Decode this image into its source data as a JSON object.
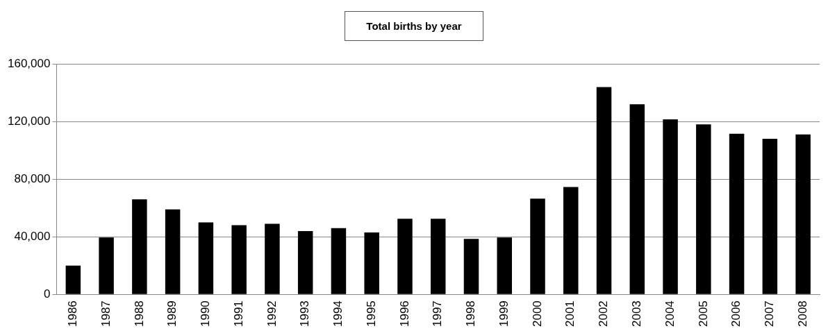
{
  "chart_data": {
    "type": "bar",
    "title": "Total births by year",
    "categories": [
      "1986",
      "1987",
      "1988",
      "1989",
      "1990",
      "1991",
      "1992",
      "1993",
      "1994",
      "1995",
      "1996",
      "1997",
      "1998",
      "1999",
      "2000",
      "2001",
      "2002",
      "2003",
      "2004",
      "2005",
      "2006",
      "2007",
      "2008"
    ],
    "values": [
      20000,
      39500,
      66000,
      59000,
      50000,
      48000,
      49000,
      44000,
      46000,
      43000,
      52500,
      52500,
      38500,
      39500,
      66500,
      74500,
      144000,
      132000,
      121500,
      118000,
      111500,
      108000,
      111000
    ],
    "color": "#000000",
    "ylim": [
      0,
      160000
    ],
    "yticks": [
      0,
      {
        "value": 40000,
        "label": "40,000"
      },
      {
        "value": 80000,
        "label": "80,000"
      },
      {
        "value": 120000,
        "label": "120,000"
      },
      {
        "value": 160000,
        "label": "160,000"
      }
    ],
    "grid": "y"
  }
}
